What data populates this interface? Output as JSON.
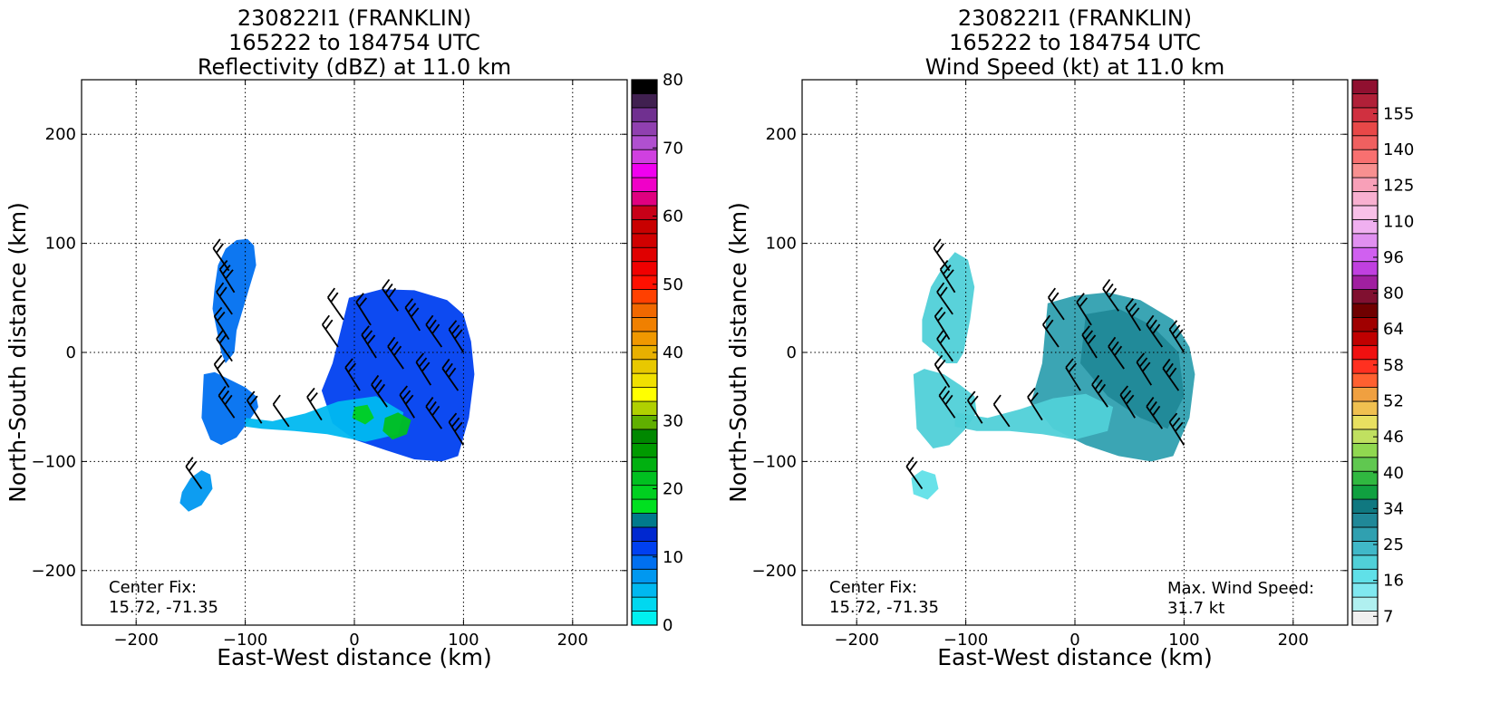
{
  "chart_data": [
    {
      "type": "heatmap",
      "title_lines": [
        "230822I1 (FRANKLIN)",
        "165222 to 184754 UTC",
        "Reflectivity (dBZ) at 11.0 km"
      ],
      "xlabel": "East-West distance (km)",
      "ylabel": "North-South distance (km)",
      "xlim": [
        -250,
        250
      ],
      "ylim": [
        -250,
        250
      ],
      "xticks": [
        "−200",
        "−100",
        "0",
        "100",
        "200"
      ],
      "yticks": [
        "200",
        "100",
        "0",
        "−100",
        "−200"
      ],
      "grid": true,
      "colorbar": {
        "range": [
          0,
          80
        ],
        "labels": [
          "0",
          "10",
          "20",
          "30",
          "40",
          "50",
          "60",
          "70",
          "80"
        ],
        "colors": [
          "#00f0f0",
          "#00d8f0",
          "#00b8f0",
          "#0098f0",
          "#0070f0",
          "#0040f0",
          "#0028d0",
          "#007a8c",
          "#00e020",
          "#00d020",
          "#00c020",
          "#00b010",
          "#009a00",
          "#008800",
          "#60b000",
          "#b0d000",
          "#ffff00",
          "#f0e000",
          "#e8c800",
          "#e8b000",
          "#f09800",
          "#f08000",
          "#f06800",
          "#ff4000",
          "#ff1000",
          "#f00000",
          "#e00000",
          "#d00000",
          "#c80000",
          "#c80018",
          "#e00080",
          "#f000c8",
          "#f000f0",
          "#d040e0",
          "#b050d0",
          "#9040b0",
          "#703090",
          "#402050",
          "#000000"
        ]
      },
      "annotation_lines": [
        "Center Fix:",
        "15.72, -71.35"
      ],
      "regions": [
        {
          "name": "north-west band",
          "x": [
            -128,
            -125,
            -118,
            -108,
            -98,
            -92,
            -90,
            -96,
            -102,
            -108,
            -110,
            -118,
            -122,
            -126,
            -130
          ],
          "y": [
            60,
            80,
            95,
            103,
            104,
            98,
            80,
            60,
            40,
            20,
            0,
            -10,
            0,
            20,
            40
          ],
          "dbz": 9
        },
        {
          "name": "west band",
          "x": [
            -138,
            -128,
            -114,
            -100,
            -90,
            -88,
            -96,
            -108,
            -122,
            -132,
            -140
          ],
          "y": [
            -20,
            -18,
            -25,
            -32,
            -40,
            -50,
            -62,
            -78,
            -85,
            -80,
            -60
          ],
          "dbz": 9
        },
        {
          "name": "south-west cell",
          "x": [
            -158,
            -150,
            -140,
            -132,
            -130,
            -140,
            -152,
            -160
          ],
          "y": [
            -128,
            -115,
            -108,
            -112,
            -125,
            -140,
            -146,
            -138
          ],
          "dbz": 7
        },
        {
          "name": "central core",
          "x": [
            -5,
            25,
            55,
            85,
            100,
            107,
            110,
            105,
            95,
            80,
            55,
            30,
            0,
            -20,
            -30,
            -20
          ],
          "y": [
            50,
            58,
            57,
            48,
            35,
            10,
            -20,
            -60,
            -95,
            -100,
            -98,
            -90,
            -80,
            -65,
            -35,
            -10
          ],
          "dbz": 12
        },
        {
          "name": "south connector",
          "x": [
            -100,
            -75,
            -45,
            -15,
            20,
            45,
            40,
            10,
            -25,
            -55,
            -85,
            -100
          ],
          "y": [
            -60,
            -63,
            -56,
            -45,
            -40,
            -55,
            -75,
            -82,
            -75,
            -72,
            -70,
            -68
          ],
          "dbz": 5
        },
        {
          "name": "convective cell",
          "x": [
            28,
            40,
            52,
            48,
            35,
            26
          ],
          "y": [
            -60,
            -55,
            -62,
            -75,
            -80,
            -72
          ],
          "dbz": 22
        },
        {
          "name": "convective cell small",
          "x": [
            0,
            12,
            18,
            10,
            -2
          ],
          "y": [
            -50,
            -48,
            -60,
            -66,
            -60
          ],
          "dbz": 20
        }
      ],
      "barbs": [
        {
          "x": -115,
          "y": 75,
          "speed": 20
        },
        {
          "x": -110,
          "y": 55,
          "speed": 25
        },
        {
          "x": -112,
          "y": 35,
          "speed": 20
        },
        {
          "x": -115,
          "y": 12,
          "speed": 15
        },
        {
          "x": -112,
          "y": -8,
          "speed": 15
        },
        {
          "x": -115,
          "y": -32,
          "speed": 20
        },
        {
          "x": -110,
          "y": -60,
          "speed": 25
        },
        {
          "x": -85,
          "y": -65,
          "speed": 15
        },
        {
          "x": -60,
          "y": -68,
          "speed": 10
        },
        {
          "x": -30,
          "y": -62,
          "speed": 15
        },
        {
          "x": -10,
          "y": 30,
          "speed": 20
        },
        {
          "x": 15,
          "y": 25,
          "speed": 20
        },
        {
          "x": 40,
          "y": 38,
          "speed": 25
        },
        {
          "x": 60,
          "y": 20,
          "speed": 30
        },
        {
          "x": 80,
          "y": 5,
          "speed": 30
        },
        {
          "x": 100,
          "y": 0,
          "speed": 25
        },
        {
          "x": -15,
          "y": 5,
          "speed": 20
        },
        {
          "x": 20,
          "y": -5,
          "speed": 25
        },
        {
          "x": 45,
          "y": -15,
          "speed": 30
        },
        {
          "x": 70,
          "y": -30,
          "speed": 30
        },
        {
          "x": 95,
          "y": -35,
          "speed": 25
        },
        {
          "x": 5,
          "y": -35,
          "speed": 20
        },
        {
          "x": 30,
          "y": -50,
          "speed": 25
        },
        {
          "x": 55,
          "y": -60,
          "speed": 30
        },
        {
          "x": 80,
          "y": -70,
          "speed": 30
        },
        {
          "x": 100,
          "y": -85,
          "speed": 25
        },
        {
          "x": -140,
          "y": -125,
          "speed": 15
        }
      ]
    },
    {
      "type": "heatmap",
      "title_lines": [
        "230822I1 (FRANKLIN)",
        "165222 to 184754 UTC",
        "Wind Speed (kt) at 11.0 km"
      ],
      "xlabel": "East-West distance (km)",
      "ylabel": "North-South distance (km)",
      "xlim": [
        -250,
        250
      ],
      "ylim": [
        -250,
        250
      ],
      "xticks": [
        "−200",
        "−100",
        "0",
        "100",
        "200"
      ],
      "yticks": [
        "200",
        "100",
        "0",
        "−100",
        "−200"
      ],
      "grid": true,
      "colorbar": {
        "labels": [
          "7",
          "16",
          "25",
          "34",
          "40",
          "46",
          "52",
          "58",
          "64",
          "80",
          "96",
          "110",
          "125",
          "140",
          "155"
        ],
        "colors": [
          "#f0f0f0",
          "#b0f0f0",
          "#80e8f0",
          "#60e0e8",
          "#50d0d8",
          "#40b8c8",
          "#30a0b0",
          "#208898",
          "#107880",
          "#10a040",
          "#30b840",
          "#60c850",
          "#90d850",
          "#c0e060",
          "#e8e060",
          "#f0c050",
          "#f0a040",
          "#ff6030",
          "#ff3020",
          "#f01010",
          "#c00000",
          "#a00000",
          "#700000",
          "#801030",
          "#a020a0",
          "#c040e0",
          "#d060f0",
          "#e090f0",
          "#f0b0f0",
          "#f8c0e8",
          "#f8b0d0",
          "#f8a0b8",
          "#f89090",
          "#f87070",
          "#f06060",
          "#e84848",
          "#d03040",
          "#b02038",
          "#901030"
        ]
      },
      "annotation_lines": [
        "Center Fix:",
        "15.72, -71.35"
      ],
      "max_wind_lines": [
        "Max. Wind Speed:",
        "31.7 kt"
      ],
      "regions": [
        {
          "name": "north-west band",
          "x": [
            -140,
            -132,
            -120,
            -110,
            -98,
            -92,
            -96,
            -102,
            -108,
            -118,
            -128,
            -140
          ],
          "y": [
            30,
            60,
            80,
            92,
            85,
            60,
            30,
            0,
            -10,
            -10,
            0,
            10
          ],
          "kt": 14
        },
        {
          "name": "west band",
          "x": [
            -148,
            -138,
            -120,
            -105,
            -92,
            -90,
            -100,
            -115,
            -130,
            -145
          ],
          "y": [
            -20,
            -15,
            -20,
            -30,
            -40,
            -55,
            -70,
            -85,
            -88,
            -70
          ],
          "kt": 14
        },
        {
          "name": "south-west cell",
          "x": [
            -150,
            -140,
            -128,
            -125,
            -135,
            -148
          ],
          "y": [
            -115,
            -108,
            -112,
            -125,
            -135,
            -130
          ],
          "kt": 10
        },
        {
          "name": "central core",
          "x": [
            -25,
            0,
            30,
            60,
            90,
            105,
            110,
            105,
            90,
            70,
            40,
            10,
            -20,
            -40,
            -30
          ],
          "y": [
            45,
            52,
            55,
            48,
            30,
            5,
            -20,
            -60,
            -95,
            -100,
            -95,
            -85,
            -70,
            -45,
            -10
          ],
          "kt": 22
        },
        {
          "name": "south connector",
          "x": [
            -110,
            -80,
            -50,
            -20,
            10,
            35,
            30,
            0,
            -30,
            -60,
            -90,
            -110
          ],
          "y": [
            -55,
            -60,
            -52,
            -42,
            -38,
            -50,
            -72,
            -80,
            -75,
            -72,
            -72,
            -68
          ],
          "kt": 14
        },
        {
          "name": "core inner",
          "x": [
            10,
            40,
            70,
            95,
            100,
            85,
            60,
            30,
            5
          ],
          "y": [
            35,
            40,
            25,
            0,
            -40,
            -70,
            -60,
            -40,
            -10
          ],
          "kt": 26
        }
      ],
      "barbs": [
        {
          "x": -115,
          "y": 75,
          "speed": 20
        },
        {
          "x": -110,
          "y": 55,
          "speed": 25
        },
        {
          "x": -112,
          "y": 35,
          "speed": 20
        },
        {
          "x": -115,
          "y": 12,
          "speed": 15
        },
        {
          "x": -112,
          "y": -8,
          "speed": 15
        },
        {
          "x": -115,
          "y": -32,
          "speed": 20
        },
        {
          "x": -110,
          "y": -60,
          "speed": 25
        },
        {
          "x": -85,
          "y": -65,
          "speed": 15
        },
        {
          "x": -60,
          "y": -68,
          "speed": 10
        },
        {
          "x": -30,
          "y": -62,
          "speed": 15
        },
        {
          "x": -10,
          "y": 30,
          "speed": 20
        },
        {
          "x": 15,
          "y": 25,
          "speed": 20
        },
        {
          "x": 40,
          "y": 38,
          "speed": 25
        },
        {
          "x": 60,
          "y": 20,
          "speed": 30
        },
        {
          "x": 80,
          "y": 5,
          "speed": 30
        },
        {
          "x": 100,
          "y": 0,
          "speed": 25
        },
        {
          "x": -15,
          "y": 5,
          "speed": 20
        },
        {
          "x": 20,
          "y": -5,
          "speed": 25
        },
        {
          "x": 45,
          "y": -15,
          "speed": 30
        },
        {
          "x": 70,
          "y": -30,
          "speed": 30
        },
        {
          "x": 95,
          "y": -35,
          "speed": 25
        },
        {
          "x": 5,
          "y": -35,
          "speed": 20
        },
        {
          "x": 30,
          "y": -50,
          "speed": 25
        },
        {
          "x": 55,
          "y": -60,
          "speed": 30
        },
        {
          "x": 80,
          "y": -70,
          "speed": 30
        },
        {
          "x": 100,
          "y": -85,
          "speed": 25
        },
        {
          "x": -140,
          "y": -125,
          "speed": 15
        }
      ]
    }
  ]
}
